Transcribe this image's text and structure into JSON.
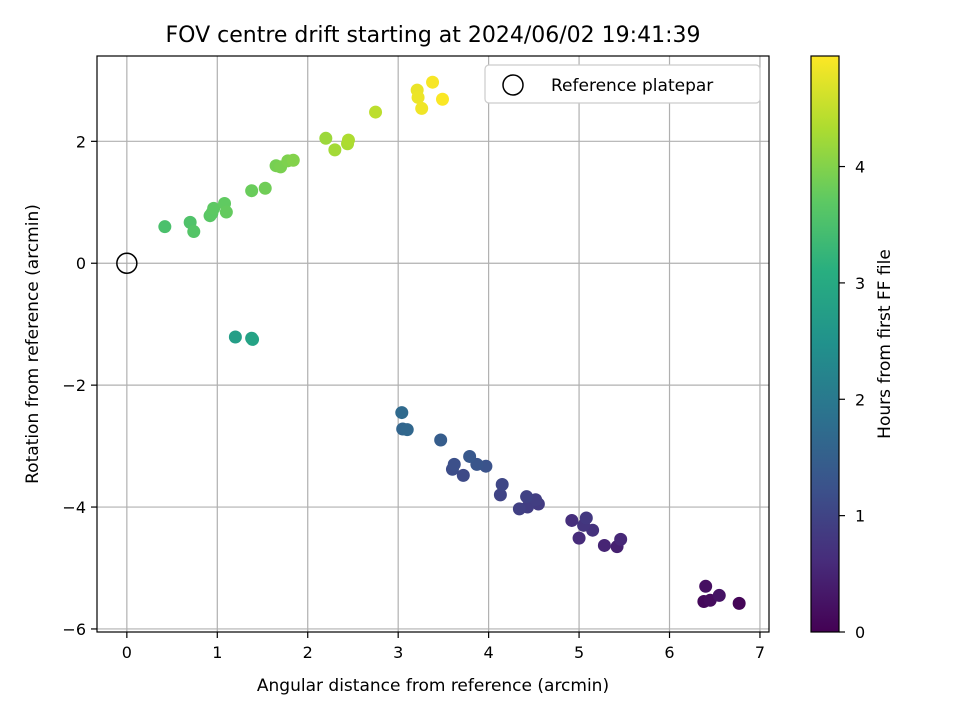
{
  "chart_data": {
    "type": "scatter",
    "title": "FOV centre drift starting at 2024/06/02 19:41:39",
    "xlabel": "Angular distance from reference (arcmin)",
    "ylabel": "Rotation from reference (arcmin)",
    "xlim": [
      -0.33,
      7.1
    ],
    "ylim": [
      -6.05,
      3.4
    ],
    "xticks": [
      0,
      1,
      2,
      3,
      4,
      5,
      6,
      7
    ],
    "yticks": [
      -6,
      -4,
      -2,
      0,
      2
    ],
    "grid": true,
    "legend": {
      "placement": "top-right",
      "entries": [
        {
          "label": "Reference platepar",
          "marker": "open-circle"
        }
      ]
    },
    "reference_point": {
      "x": 0,
      "y": 0,
      "label": "Reference platepar"
    },
    "colorbar": {
      "label": "Hours from first FF file",
      "colormap": "viridis",
      "range": [
        0,
        4.95
      ],
      "ticks": [
        0,
        1,
        2,
        3,
        4
      ]
    },
    "points": [
      {
        "x": 6.77,
        "y": -5.58,
        "c": 0.05
      },
      {
        "x": 6.38,
        "y": -5.55,
        "c": 0.1
      },
      {
        "x": 6.45,
        "y": -5.53,
        "c": 0.15
      },
      {
        "x": 6.4,
        "y": -5.3,
        "c": 0.2
      },
      {
        "x": 6.55,
        "y": -5.45,
        "c": 0.25
      },
      {
        "x": 5.42,
        "y": -4.65,
        "c": 0.45
      },
      {
        "x": 5.28,
        "y": -4.63,
        "c": 0.5
      },
      {
        "x": 5.46,
        "y": -4.53,
        "c": 0.55
      },
      {
        "x": 5.0,
        "y": -4.51,
        "c": 0.6
      },
      {
        "x": 4.92,
        "y": -4.22,
        "c": 0.65
      },
      {
        "x": 5.15,
        "y": -4.38,
        "c": 0.7
      },
      {
        "x": 5.05,
        "y": -4.3,
        "c": 0.75
      },
      {
        "x": 5.08,
        "y": -4.18,
        "c": 0.8
      },
      {
        "x": 4.55,
        "y": -3.95,
        "c": 0.85
      },
      {
        "x": 4.43,
        "y": -4.0,
        "c": 0.88
      },
      {
        "x": 4.52,
        "y": -3.88,
        "c": 0.9
      },
      {
        "x": 4.34,
        "y": -4.03,
        "c": 0.93
      },
      {
        "x": 4.42,
        "y": -3.83,
        "c": 0.96
      },
      {
        "x": 4.13,
        "y": -3.8,
        "c": 1.0
      },
      {
        "x": 4.15,
        "y": -3.63,
        "c": 1.05
      },
      {
        "x": 3.72,
        "y": -3.48,
        "c": 1.1
      },
      {
        "x": 3.6,
        "y": -3.38,
        "c": 1.15
      },
      {
        "x": 3.62,
        "y": -3.3,
        "c": 1.2
      },
      {
        "x": 3.97,
        "y": -3.33,
        "c": 1.25
      },
      {
        "x": 3.87,
        "y": -3.3,
        "c": 1.3
      },
      {
        "x": 3.79,
        "y": -3.17,
        "c": 1.35
      },
      {
        "x": 3.47,
        "y": -2.9,
        "c": 1.45
      },
      {
        "x": 3.05,
        "y": -2.72,
        "c": 1.6
      },
      {
        "x": 3.1,
        "y": -2.73,
        "c": 1.65
      },
      {
        "x": 3.04,
        "y": -2.45,
        "c": 1.7
      },
      {
        "x": 1.2,
        "y": -1.21,
        "c": 2.75
      },
      {
        "x": 1.38,
        "y": -1.23,
        "c": 2.8
      },
      {
        "x": 1.39,
        "y": -1.25,
        "c": 2.85
      },
      {
        "x": 0.42,
        "y": 0.6,
        "c": 3.5
      },
      {
        "x": 0.7,
        "y": 0.67,
        "c": 3.55
      },
      {
        "x": 0.74,
        "y": 0.52,
        "c": 3.6
      },
      {
        "x": 0.92,
        "y": 0.78,
        "c": 3.65
      },
      {
        "x": 0.94,
        "y": 0.82,
        "c": 3.68
      },
      {
        "x": 0.96,
        "y": 0.9,
        "c": 3.7
      },
      {
        "x": 1.08,
        "y": 0.98,
        "c": 3.73
      },
      {
        "x": 1.1,
        "y": 0.84,
        "c": 3.76
      },
      {
        "x": 1.38,
        "y": 1.19,
        "c": 3.8
      },
      {
        "x": 1.53,
        "y": 1.23,
        "c": 3.85
      },
      {
        "x": 1.65,
        "y": 1.6,
        "c": 3.9
      },
      {
        "x": 1.7,
        "y": 1.58,
        "c": 3.93
      },
      {
        "x": 1.78,
        "y": 1.68,
        "c": 3.96
      },
      {
        "x": 1.84,
        "y": 1.69,
        "c": 4.0
      },
      {
        "x": 2.2,
        "y": 2.05,
        "c": 4.2
      },
      {
        "x": 2.3,
        "y": 1.86,
        "c": 4.25
      },
      {
        "x": 2.44,
        "y": 1.96,
        "c": 4.3
      },
      {
        "x": 2.45,
        "y": 2.02,
        "c": 4.33
      },
      {
        "x": 2.75,
        "y": 2.48,
        "c": 4.45
      },
      {
        "x": 3.21,
        "y": 2.84,
        "c": 4.8
      },
      {
        "x": 3.22,
        "y": 2.72,
        "c": 4.82
      },
      {
        "x": 3.26,
        "y": 2.54,
        "c": 4.85
      },
      {
        "x": 3.38,
        "y": 2.97,
        "c": 4.9
      },
      {
        "x": 3.49,
        "y": 2.69,
        "c": 4.93
      }
    ]
  }
}
